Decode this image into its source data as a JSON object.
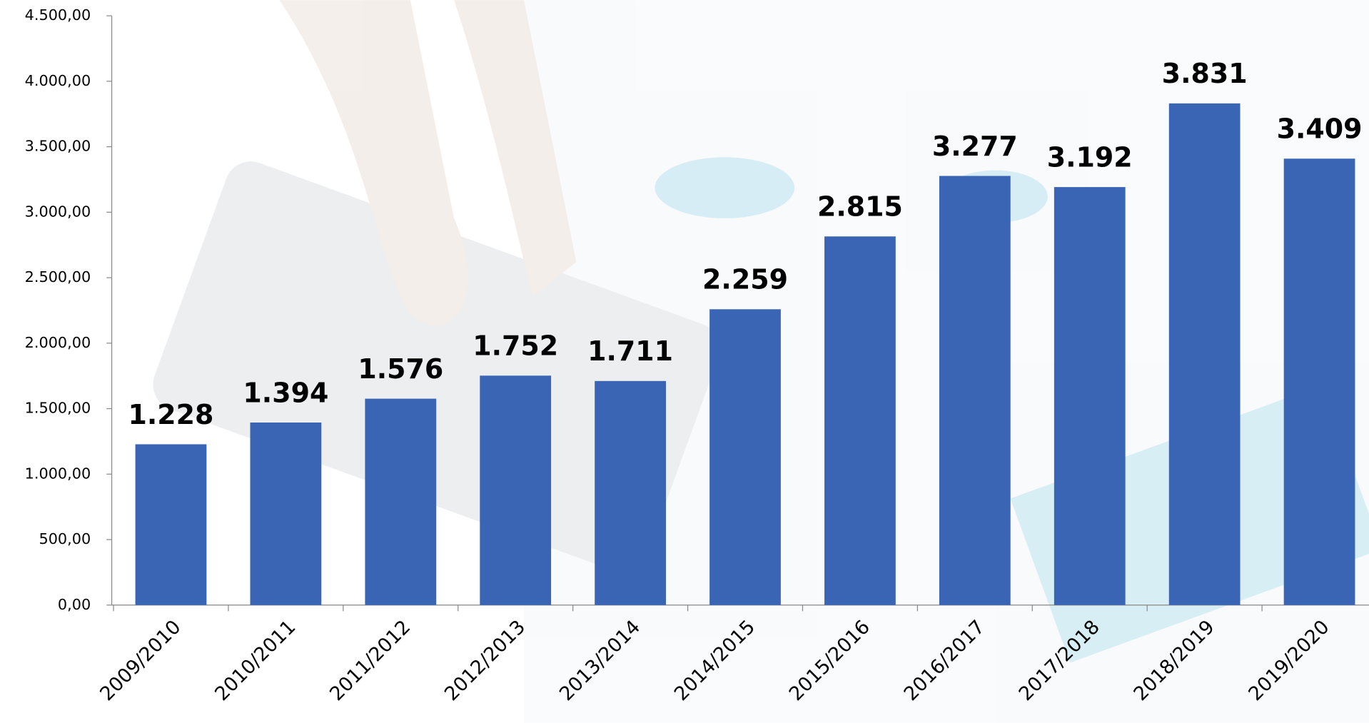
{
  "chart_data": {
    "type": "bar",
    "categories": [
      "2009/2010",
      "2010/2011",
      "2011/2012",
      "2012/2013",
      "2013/2014",
      "2014/2015",
      "2015/2016",
      "2016/2017",
      "2017/2018",
      "2018/2019",
      "2019/2020"
    ],
    "values": [
      1228,
      1394,
      1576,
      1752,
      1711,
      2259,
      2815,
      3277,
      3192,
      3831,
      3409
    ],
    "value_labels": [
      "1.228",
      "1.394",
      "1.576",
      "1.752",
      "1.711",
      "2.259",
      "2.815",
      "3.277",
      "3.192",
      "3.831",
      "3.409"
    ],
    "color": "#3a65b5",
    "ylim": [
      0,
      4500
    ],
    "yticks": [
      {
        "value": 0,
        "label": "0,00"
      },
      {
        "value": 500,
        "label": "500,00"
      },
      {
        "value": 1000,
        "label": "1.000,00"
      },
      {
        "value": 1500,
        "label": "1.500,00"
      },
      {
        "value": 2000,
        "label": "2.000,00"
      },
      {
        "value": 2500,
        "label": "2.500,00"
      },
      {
        "value": 3000,
        "label": "3.000,00"
      },
      {
        "value": 3500,
        "label": "3.500,00"
      },
      {
        "value": 4000,
        "label": "4.000,00"
      },
      {
        "value": 4500,
        "label": "4.500,00"
      }
    ],
    "grid": false
  }
}
